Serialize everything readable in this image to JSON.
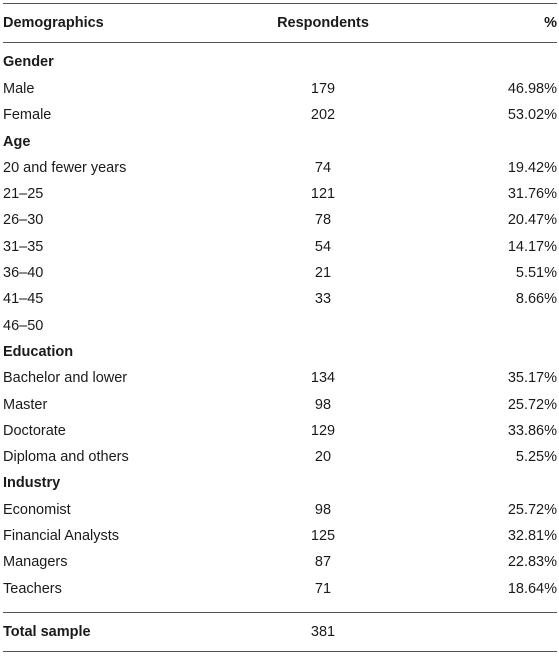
{
  "headers": {
    "col1": "Demographics",
    "col2": "Respondents",
    "col3": "%"
  },
  "groups": {
    "gender": {
      "title": "Gender",
      "rows": [
        {
          "label": "Male",
          "n": "179",
          "pct": "46.98%"
        },
        {
          "label": "Female",
          "n": "202",
          "pct": "53.02%"
        }
      ]
    },
    "age": {
      "title": "Age",
      "rows": [
        {
          "label": "20 and fewer years",
          "n": "74",
          "pct": "19.42%"
        },
        {
          "label": "21–25",
          "n": "121",
          "pct": "31.76%"
        },
        {
          "label": "26–30",
          "n": "78",
          "pct": "20.47%"
        },
        {
          "label": "31–35",
          "n": "54",
          "pct": "14.17%"
        },
        {
          "label": "36–40",
          "n": "21",
          "pct": "5.51%"
        },
        {
          "label": "41–45",
          "n": "33",
          "pct": "8.66%"
        },
        {
          "label": "46–50",
          "n": "",
          "pct": ""
        }
      ]
    },
    "education": {
      "title": "Education",
      "rows": [
        {
          "label": "Bachelor and lower",
          "n": "134",
          "pct": "35.17%"
        },
        {
          "label": "Master",
          "n": "98",
          "pct": "25.72%"
        },
        {
          "label": "Doctorate",
          "n": "129",
          "pct": "33.86%"
        },
        {
          "label": "Diploma and others",
          "n": "20",
          "pct": "5.25%"
        }
      ]
    },
    "industry": {
      "title": "Industry",
      "rows": [
        {
          "label": "Economist",
          "n": "98",
          "pct": "25.72%"
        },
        {
          "label": "Financial Analysts",
          "n": "125",
          "pct": "32.81%"
        },
        {
          "label": "Managers",
          "n": "87",
          "pct": "22.83%"
        },
        {
          "label": "Teachers",
          "n": "71",
          "pct": "18.64%"
        }
      ]
    }
  },
  "total": {
    "label": "Total sample",
    "n": "381"
  }
}
